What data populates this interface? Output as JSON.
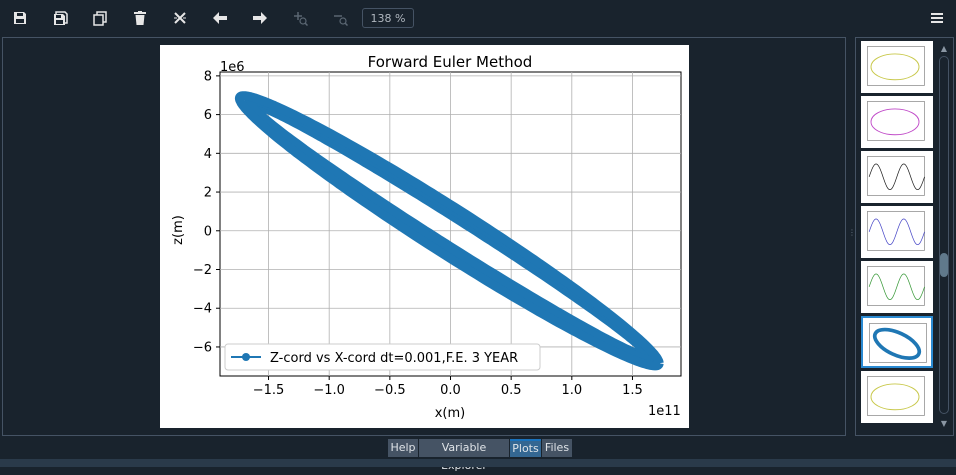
{
  "toolbar": {
    "buttons": [
      "save-icon",
      "save-all-icon",
      "copy-icon",
      "delete-icon",
      "delete-all-icon",
      "arrow-left-icon",
      "arrow-right-icon",
      "zoom-in-icon",
      "zoom-out-icon"
    ],
    "zoom_value": "138 %"
  },
  "colors": {
    "accent": "#1f77b4",
    "panel_bg": "#19232d",
    "tab_bg": "#455364",
    "tab_active": "#346792"
  },
  "plot": {
    "chart_data": {
      "type": "scatter",
      "title": "Forward Euler Method",
      "xlabel": "x(m)",
      "ylabel": "z(m)",
      "x_scale_label": "1e11",
      "y_scale_label": "1e6",
      "xlim": [
        -1.9,
        1.9
      ],
      "ylim": [
        -7.5,
        8.2
      ],
      "x_ticks": [
        -1.5,
        -1.0,
        -0.5,
        0.0,
        0.5,
        1.0,
        1.5
      ],
      "x_tick_labels": [
        "−1.5",
        "−1.0",
        "−0.5",
        "0.0",
        "0.5",
        "1.0",
        "1.5"
      ],
      "y_ticks": [
        -6,
        -4,
        -2,
        0,
        2,
        4,
        6,
        8
      ],
      "y_tick_labels": [
        "−6",
        "−4",
        "−2",
        "0",
        "2",
        "4",
        "6",
        "8"
      ],
      "grid": true,
      "legend": {
        "position": "lower-left",
        "entries": [
          "Z-cord vs X-cord dt=0.001,F.E. 3 YEAR"
        ]
      },
      "series": [
        {
          "name": "Z-cord vs X-cord dt=0.001,F.E. 3 YEAR",
          "color": "#1f77b4",
          "shape": "ellipse-orbit",
          "orbits": [
            {
              "center": [
                0.0,
                0.0
              ],
              "x_amplitude": 1.62,
              "z_amplitude": 6.65,
              "phase_shift": 0.0
            },
            {
              "center": [
                0.02,
                0.0
              ],
              "x_amplitude": 1.68,
              "z_amplitude": 6.95,
              "phase_shift": 0.03
            },
            {
              "center": [
                -0.01,
                0.0
              ],
              "x_amplitude": 1.73,
              "z_amplitude": 7.2,
              "phase_shift": 0.07
            }
          ]
        }
      ]
    }
  },
  "thumbnails": [
    {
      "name": "thumb-1",
      "color": "#c8c84a",
      "kind": "ellipse"
    },
    {
      "name": "thumb-2",
      "color": "#c04ac8",
      "kind": "ellipse"
    },
    {
      "name": "thumb-3",
      "color": "#222222",
      "kind": "sine"
    },
    {
      "name": "thumb-4",
      "color": "#4a4ac8",
      "kind": "sine"
    },
    {
      "name": "thumb-5",
      "color": "#3a9a3a",
      "kind": "sine"
    },
    {
      "name": "thumb-6",
      "color": "#1f77b4",
      "kind": "orbit"
    },
    {
      "name": "thumb-7",
      "color": "#c8c84a",
      "kind": "ellipse"
    }
  ],
  "tabs": [
    {
      "label": "Help",
      "active": false
    },
    {
      "label": "Variable Explorer",
      "active": false
    },
    {
      "label": "Plots",
      "active": true
    },
    {
      "label": "Files",
      "active": false
    }
  ]
}
